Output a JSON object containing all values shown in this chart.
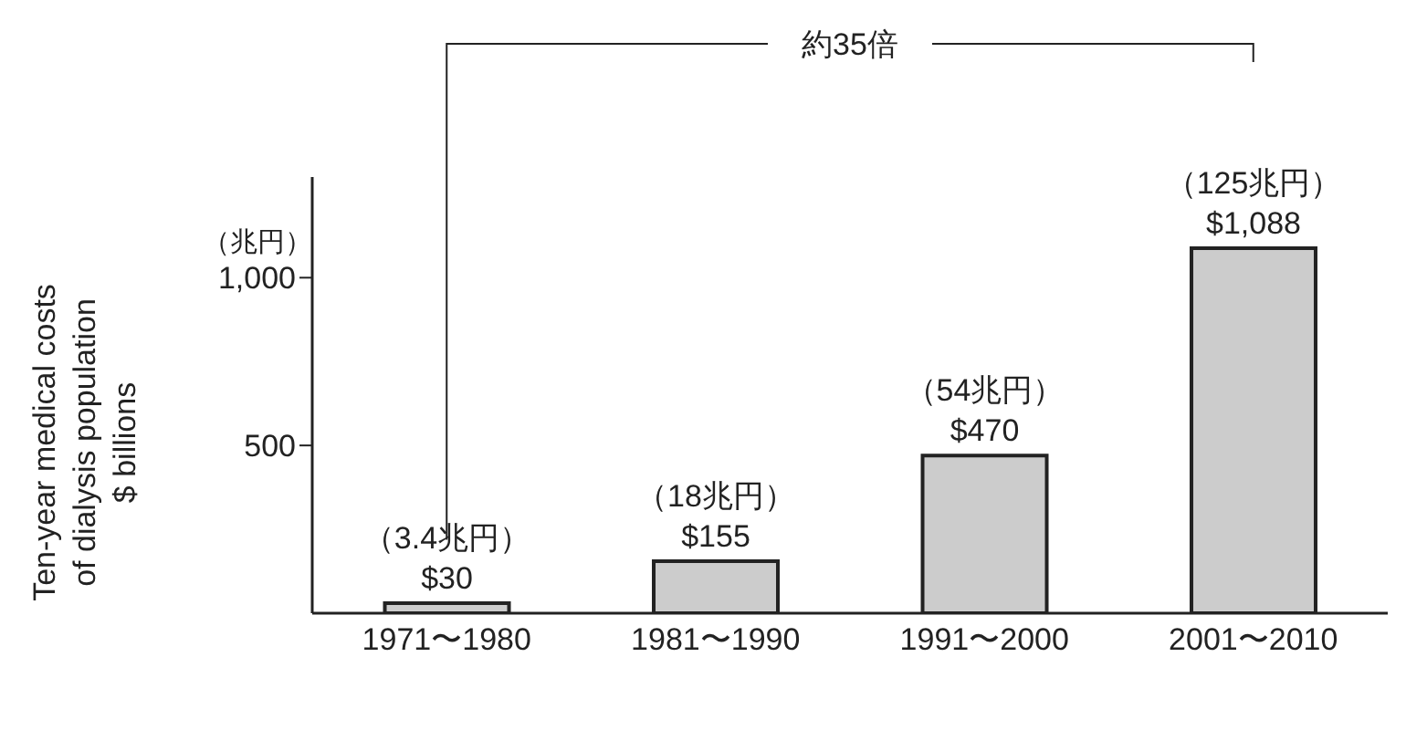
{
  "chart_data": {
    "type": "bar",
    "ylabel": "Ten-year medical costs\nof dialysis population\n$ billions",
    "annotations": [
      "（兆円）",
      "約35倍"
    ],
    "categories": [
      "1971〜1980",
      "1981〜1990",
      "1991〜2000",
      "2001〜2010"
    ],
    "values": [
      30,
      155,
      470,
      1088
    ],
    "value_labels": [
      "（3.4兆円）\n$30",
      "（18兆円）\n$155",
      "（54兆円）\n$470",
      "（125兆円）\n$1,088"
    ],
    "color": "#cccccc",
    "ylim": [
      0,
      1300
    ],
    "yticks": [
      {
        "value": 500,
        "label": "500"
      },
      {
        "value": 1000,
        "label": "1,000"
      }
    ],
    "grid": false,
    "legend": false
  }
}
